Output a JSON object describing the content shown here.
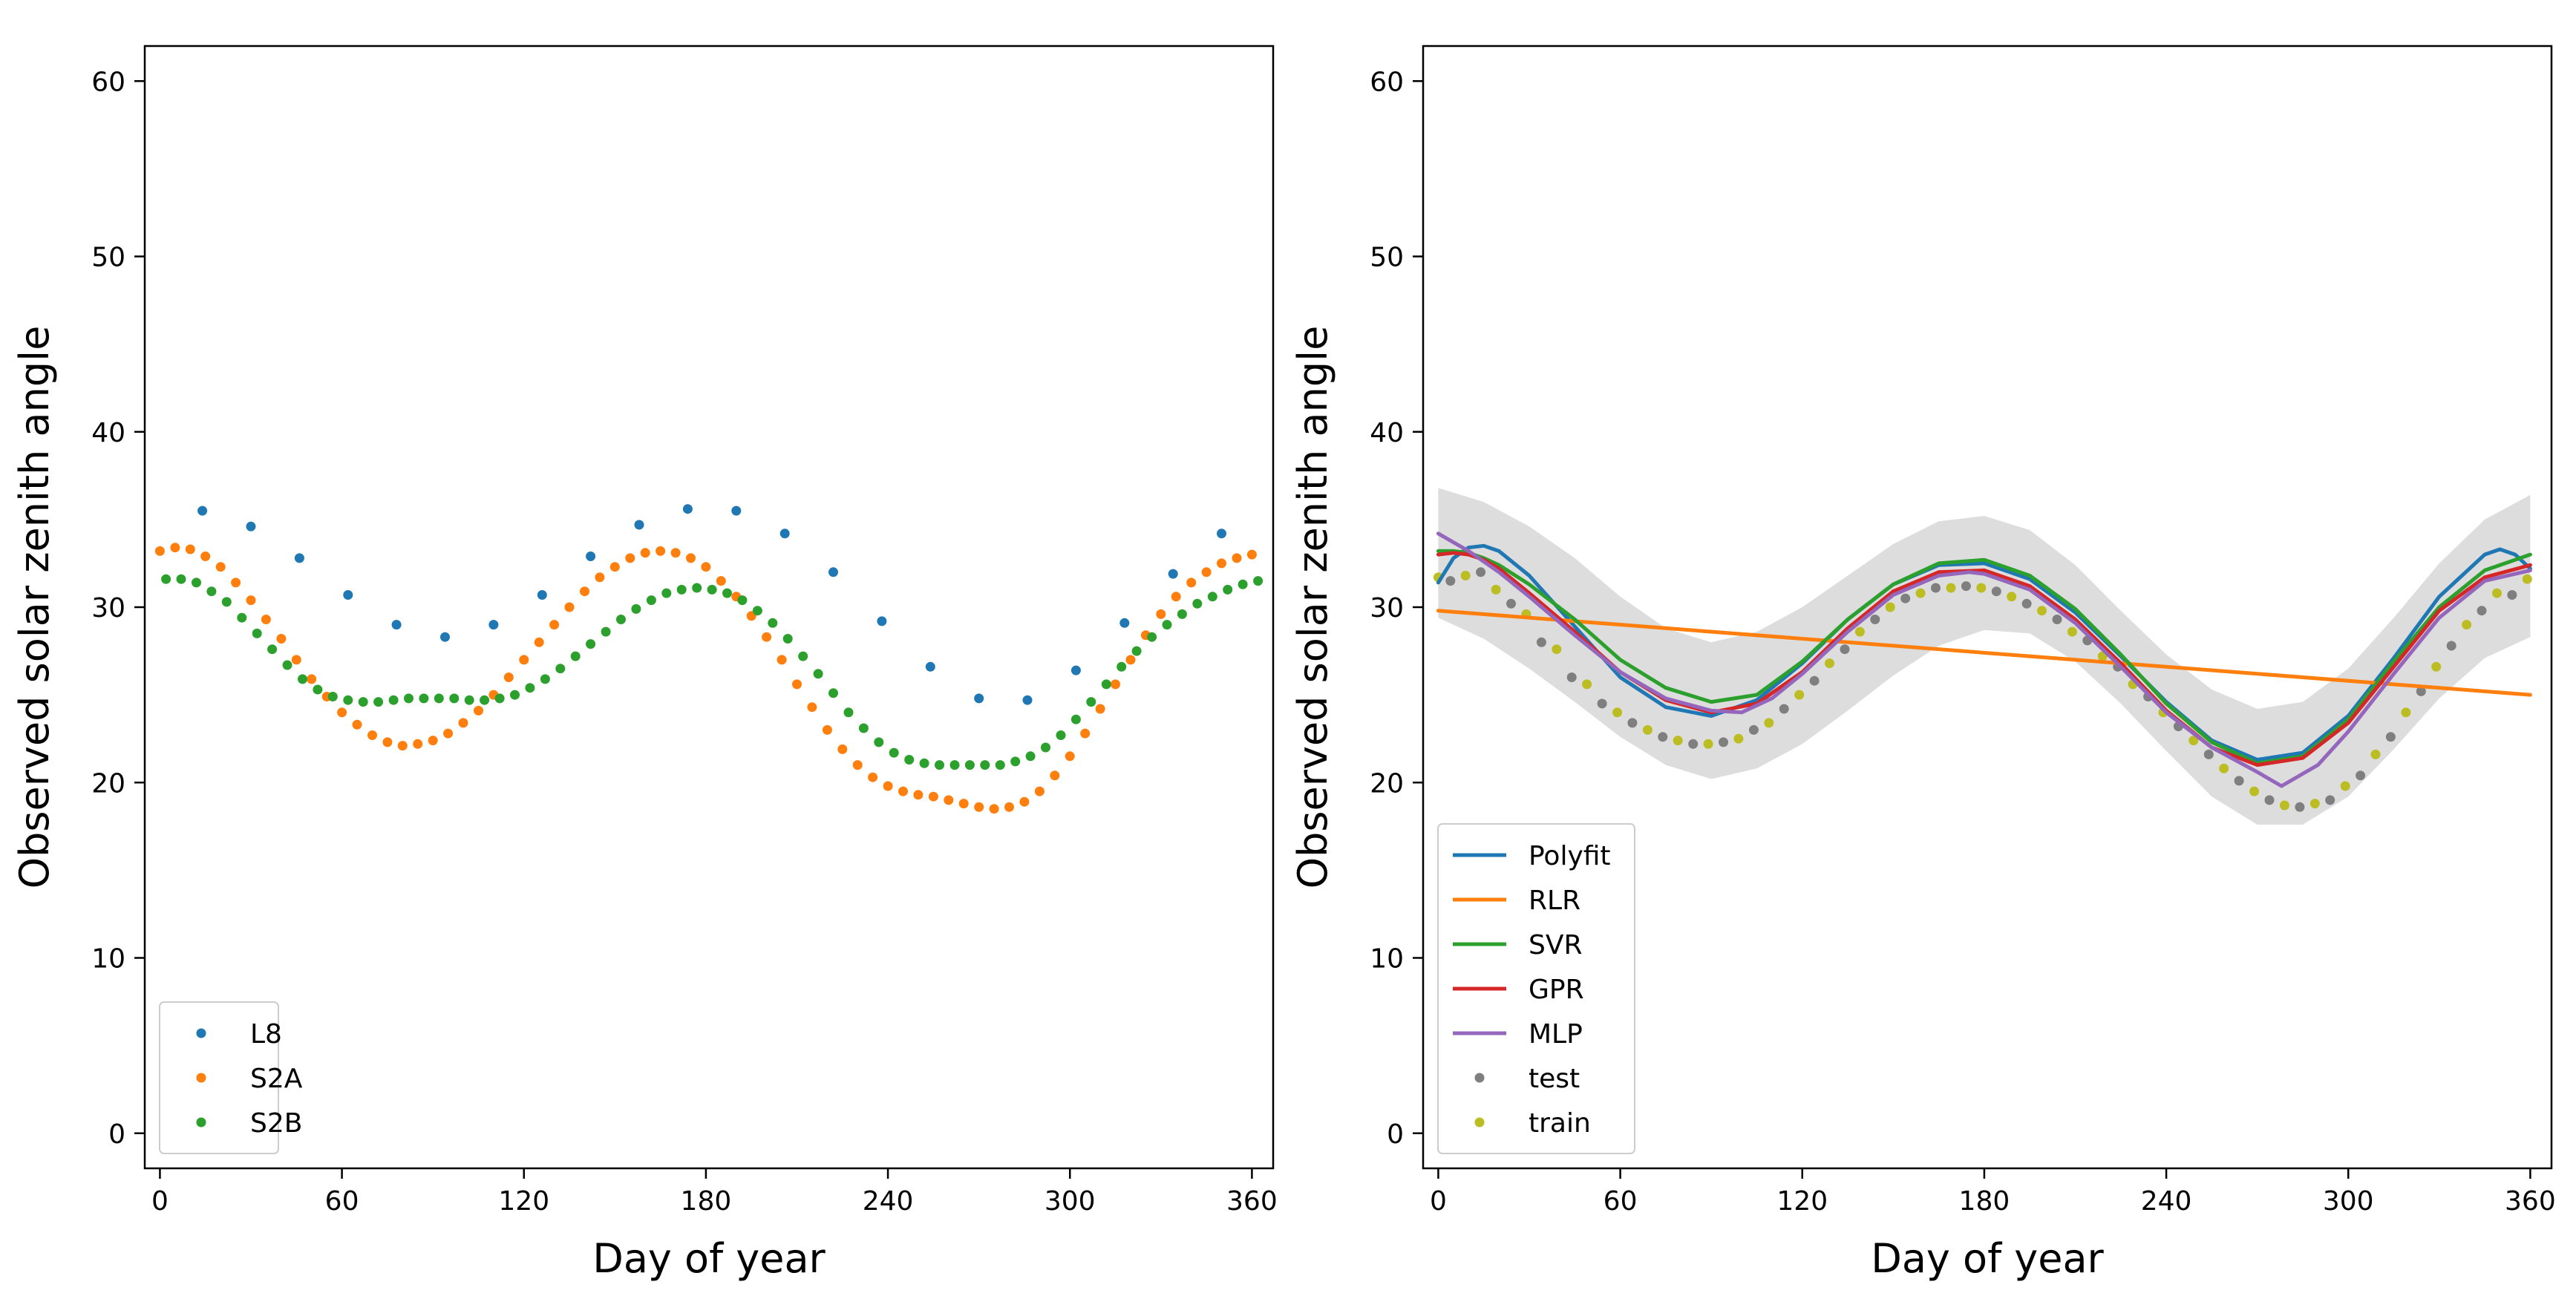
{
  "chart_data": [
    {
      "type": "scatter",
      "xlabel": "Day of year",
      "ylabel": "Observed solar zenith angle",
      "xlim": [
        -5,
        367
      ],
      "ylim": [
        -2,
        62
      ],
      "xticks": [
        "0",
        "60",
        "120",
        "180",
        "240",
        "300",
        "360"
      ],
      "xtick_values": [
        0,
        60,
        120,
        180,
        240,
        300,
        360
      ],
      "yticks": [
        "0",
        "10",
        "20",
        "30",
        "40",
        "50",
        "60"
      ],
      "ytick_values": [
        0,
        10,
        20,
        30,
        40,
        50,
        60
      ],
      "legend_position": "lower-left",
      "series": [
        {
          "name": "L8",
          "color": "#1f77b4",
          "kind": "points",
          "x": [
            14,
            30,
            46,
            62,
            78,
            94,
            110,
            126,
            142,
            158,
            174,
            190,
            206,
            222,
            238,
            254,
            270,
            286,
            302,
            318,
            334,
            350
          ],
          "y": [
            35.5,
            34.6,
            32.8,
            30.7,
            29.0,
            28.3,
            29.0,
            30.7,
            32.9,
            34.7,
            35.6,
            35.5,
            34.2,
            32.0,
            29.2,
            26.6,
            24.8,
            24.7,
            26.4,
            29.1,
            31.9,
            34.2
          ]
        },
        {
          "name": "S2A",
          "color": "#ff7f0e",
          "kind": "points",
          "x": [
            0,
            5,
            10,
            15,
            20,
            25,
            30,
            35,
            40,
            45,
            50,
            55,
            60,
            65,
            70,
            75,
            80,
            85,
            90,
            95,
            100,
            105,
            110,
            115,
            120,
            125,
            130,
            135,
            140,
            145,
            150,
            155,
            160,
            165,
            170,
            175,
            180,
            185,
            190,
            195,
            200,
            205,
            210,
            215,
            220,
            225,
            230,
            235,
            240,
            245,
            250,
            255,
            260,
            265,
            270,
            275,
            280,
            285,
            290,
            295,
            300,
            305,
            310,
            315,
            320,
            325,
            330,
            335,
            340,
            345,
            350,
            355,
            360
          ],
          "y": [
            33.2,
            33.4,
            33.3,
            32.9,
            32.3,
            31.4,
            30.4,
            29.3,
            28.2,
            27.0,
            25.9,
            24.9,
            24.0,
            23.3,
            22.7,
            22.3,
            22.1,
            22.2,
            22.4,
            22.8,
            23.4,
            24.1,
            25.0,
            26.0,
            27.0,
            28.0,
            29.0,
            30.0,
            30.9,
            31.7,
            32.3,
            32.8,
            33.1,
            33.2,
            33.1,
            32.8,
            32.3,
            31.5,
            30.6,
            29.5,
            28.3,
            27.0,
            25.6,
            24.3,
            23.0,
            21.9,
            21.0,
            20.3,
            19.8,
            19.5,
            19.3,
            19.2,
            19.0,
            18.8,
            18.6,
            18.5,
            18.6,
            18.9,
            19.5,
            20.4,
            21.5,
            22.8,
            24.2,
            25.6,
            27.0,
            28.4,
            29.6,
            30.6,
            31.4,
            32.0,
            32.5,
            32.8,
            33.0
          ]
        },
        {
          "name": "S2B",
          "color": "#2ca02c",
          "kind": "points",
          "x": [
            2,
            7,
            12,
            17,
            22,
            27,
            32,
            37,
            42,
            47,
            52,
            57,
            62,
            67,
            72,
            77,
            82,
            87,
            92,
            97,
            102,
            107,
            112,
            117,
            122,
            127,
            132,
            137,
            142,
            147,
            152,
            157,
            162,
            167,
            172,
            177,
            182,
            187,
            192,
            197,
            202,
            207,
            212,
            217,
            222,
            227,
            232,
            237,
            242,
            247,
            252,
            257,
            262,
            267,
            272,
            277,
            282,
            287,
            292,
            297,
            302,
            307,
            312,
            317,
            322,
            327,
            332,
            337,
            342,
            347,
            352,
            357,
            362
          ],
          "y": [
            31.6,
            31.6,
            31.4,
            30.9,
            30.3,
            29.4,
            28.5,
            27.6,
            26.7,
            25.9,
            25.3,
            24.9,
            24.7,
            24.6,
            24.6,
            24.7,
            24.8,
            24.8,
            24.8,
            24.8,
            24.7,
            24.7,
            24.8,
            25.0,
            25.4,
            25.9,
            26.5,
            27.2,
            27.9,
            28.6,
            29.3,
            29.9,
            30.4,
            30.8,
            31.0,
            31.1,
            31.0,
            30.8,
            30.4,
            29.8,
            29.1,
            28.2,
            27.2,
            26.2,
            25.1,
            24.0,
            23.1,
            22.3,
            21.7,
            21.3,
            21.1,
            21.0,
            21.0,
            21.0,
            21.0,
            21.0,
            21.2,
            21.5,
            22.0,
            22.7,
            23.6,
            24.6,
            25.6,
            26.6,
            27.5,
            28.3,
            29.0,
            29.6,
            30.2,
            30.6,
            31.0,
            31.3,
            31.5
          ]
        }
      ]
    },
    {
      "type": "line",
      "xlabel": "Day of year",
      "ylabel": "Observed solar zenith angle",
      "xlim": [
        -5,
        367
      ],
      "ylim": [
        -2,
        62
      ],
      "xticks": [
        "0",
        "60",
        "120",
        "180",
        "240",
        "300",
        "360"
      ],
      "xtick_values": [
        0,
        60,
        120,
        180,
        240,
        300,
        360
      ],
      "yticks": [
        "0",
        "10",
        "20",
        "30",
        "40",
        "50",
        "60"
      ],
      "ytick_values": [
        0,
        10,
        20,
        30,
        40,
        50,
        60
      ],
      "legend_position": "lower-left",
      "confidence_band": {
        "color": "#d9d9d9",
        "x": [
          0,
          15,
          30,
          45,
          60,
          75,
          90,
          105,
          120,
          135,
          150,
          165,
          180,
          195,
          210,
          225,
          240,
          255,
          270,
          285,
          300,
          315,
          330,
          345,
          360
        ],
        "upper": [
          36.8,
          36.0,
          34.6,
          32.8,
          30.6,
          28.8,
          28.0,
          28.6,
          30.0,
          31.8,
          33.6,
          34.9,
          35.2,
          34.4,
          32.4,
          29.8,
          27.3,
          25.3,
          24.2,
          24.6,
          26.5,
          29.4,
          32.5,
          35.0,
          36.4
        ],
        "lower": [
          29.4,
          28.2,
          26.5,
          24.6,
          22.6,
          21.0,
          20.2,
          20.8,
          22.2,
          24.1,
          26.1,
          27.8,
          28.7,
          28.5,
          26.9,
          24.5,
          21.8,
          19.2,
          17.6,
          17.6,
          19.2,
          21.9,
          24.8,
          27.1,
          28.3
        ]
      },
      "series": [
        {
          "name": "Polyfit",
          "color": "#1f77b4",
          "kind": "line",
          "x": [
            0,
            5,
            10,
            15,
            20,
            30,
            45,
            60,
            75,
            90,
            105,
            120,
            135,
            150,
            165,
            180,
            195,
            210,
            225,
            240,
            255,
            270,
            285,
            300,
            315,
            330,
            345,
            350,
            355,
            360
          ],
          "y": [
            31.4,
            32.8,
            33.4,
            33.5,
            33.2,
            31.8,
            28.9,
            26.0,
            24.3,
            23.8,
            24.7,
            26.8,
            29.3,
            31.3,
            32.4,
            32.5,
            31.6,
            29.7,
            27.2,
            24.6,
            22.4,
            21.3,
            21.7,
            23.8,
            27.1,
            30.6,
            33.0,
            33.3,
            33.0,
            32.2
          ]
        },
        {
          "name": "RLR",
          "color": "#ff7f0e",
          "kind": "line",
          "x": [
            0,
            360
          ],
          "y": [
            29.8,
            25.0
          ]
        },
        {
          "name": "SVR",
          "color": "#2ca02c",
          "kind": "line",
          "x": [
            0,
            5,
            10,
            15,
            20,
            30,
            45,
            60,
            75,
            90,
            105,
            120,
            135,
            150,
            165,
            180,
            195,
            210,
            225,
            240,
            255,
            270,
            285,
            300,
            315,
            330,
            345,
            360
          ],
          "y": [
            33.2,
            33.2,
            33.1,
            32.8,
            32.4,
            31.3,
            29.3,
            27.0,
            25.4,
            24.6,
            25.0,
            26.9,
            29.3,
            31.3,
            32.5,
            32.7,
            31.8,
            29.9,
            27.3,
            24.5,
            22.3,
            21.1,
            21.5,
            23.6,
            26.9,
            30.0,
            32.1,
            33.0
          ]
        },
        {
          "name": "GPR",
          "color": "#d62728",
          "kind": "line",
          "x": [
            0,
            5,
            10,
            15,
            20,
            30,
            45,
            60,
            75,
            90,
            105,
            120,
            135,
            150,
            165,
            180,
            195,
            210,
            225,
            240,
            255,
            270,
            285,
            300,
            315,
            330,
            345,
            360
          ],
          "y": [
            33.0,
            33.1,
            33.0,
            32.7,
            32.2,
            30.8,
            28.6,
            26.3,
            24.7,
            24.0,
            24.5,
            26.3,
            28.8,
            30.9,
            32.0,
            32.1,
            31.2,
            29.3,
            26.8,
            24.1,
            22.0,
            21.0,
            21.4,
            23.4,
            26.6,
            29.8,
            31.7,
            32.4
          ]
        },
        {
          "name": "MLP",
          "color": "#9467bd",
          "kind": "line",
          "x": [
            0,
            10,
            20,
            30,
            45,
            60,
            75,
            90,
            100,
            110,
            120,
            135,
            150,
            165,
            175,
            180,
            195,
            210,
            225,
            240,
            255,
            270,
            278,
            290,
            300,
            315,
            330,
            345,
            360
          ],
          "y": [
            34.2,
            33.2,
            32.0,
            30.6,
            28.4,
            26.3,
            24.8,
            24.1,
            24.0,
            24.8,
            26.2,
            28.6,
            30.7,
            31.8,
            32.0,
            31.9,
            31.0,
            29.1,
            26.6,
            24.0,
            22.0,
            20.6,
            19.8,
            21.0,
            22.9,
            26.2,
            29.4,
            31.5,
            32.1
          ]
        },
        {
          "name": "test",
          "color": "#7f7f7f",
          "kind": "points",
          "x": [
            4,
            14,
            24,
            34,
            44,
            54,
            64,
            74,
            84,
            94,
            104,
            114,
            124,
            134,
            144,
            154,
            164,
            174,
            184,
            194,
            204,
            214,
            224,
            234,
            244,
            254,
            264,
            274,
            284,
            294,
            304,
            314,
            324,
            334,
            344,
            354
          ],
          "y": [
            31.5,
            32.0,
            30.2,
            28.0,
            26.0,
            24.5,
            23.4,
            22.6,
            22.2,
            22.3,
            23.0,
            24.2,
            25.8,
            27.6,
            29.3,
            30.5,
            31.1,
            31.2,
            30.9,
            30.2,
            29.3,
            28.1,
            26.6,
            24.9,
            23.2,
            21.6,
            20.1,
            19.0,
            18.6,
            19.0,
            20.4,
            22.6,
            25.2,
            27.8,
            29.8,
            30.7
          ]
        },
        {
          "name": "train",
          "color": "#bcbd22",
          "kind": "points",
          "x": [
            0,
            9,
            19,
            29,
            39,
            49,
            59,
            69,
            79,
            89,
            99,
            109,
            119,
            129,
            139,
            149,
            159,
            169,
            179,
            189,
            199,
            209,
            219,
            229,
            239,
            249,
            259,
            269,
            279,
            289,
            299,
            309,
            319,
            329,
            339,
            349,
            359
          ],
          "y": [
            31.7,
            31.8,
            31.0,
            29.6,
            27.6,
            25.6,
            24.0,
            23.0,
            22.4,
            22.2,
            22.5,
            23.4,
            25.0,
            26.8,
            28.6,
            30.0,
            30.8,
            31.1,
            31.1,
            30.6,
            29.8,
            28.6,
            27.2,
            25.6,
            24.0,
            22.4,
            20.8,
            19.5,
            18.7,
            18.8,
            19.8,
            21.6,
            24.0,
            26.6,
            29.0,
            30.8,
            31.6
          ]
        }
      ]
    }
  ]
}
